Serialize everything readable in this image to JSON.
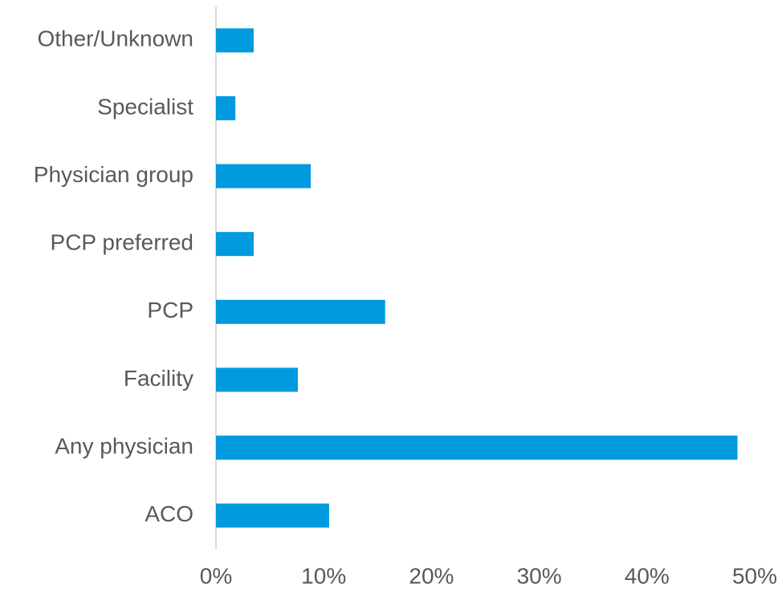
{
  "chart_data": {
    "type": "bar",
    "orientation": "horizontal",
    "categories": [
      "Other/Unknown",
      "Specialist",
      "Physician group",
      "PCP preferred",
      "PCP",
      "Facility",
      "Any physician",
      "ACO"
    ],
    "values": [
      3.5,
      1.8,
      8.8,
      3.5,
      15.7,
      7.6,
      48.4,
      10.5
    ],
    "color": "#009ade",
    "xlim": [
      0,
      50
    ],
    "xticks": [
      {
        "value": 0,
        "label": "0%"
      },
      {
        "value": 10,
        "label": "10%"
      },
      {
        "value": 20,
        "label": "20%"
      },
      {
        "value": 30,
        "label": "30%"
      },
      {
        "value": 40,
        "label": "40%"
      },
      {
        "value": 50,
        "label": "50%"
      }
    ],
    "grid": false
  }
}
